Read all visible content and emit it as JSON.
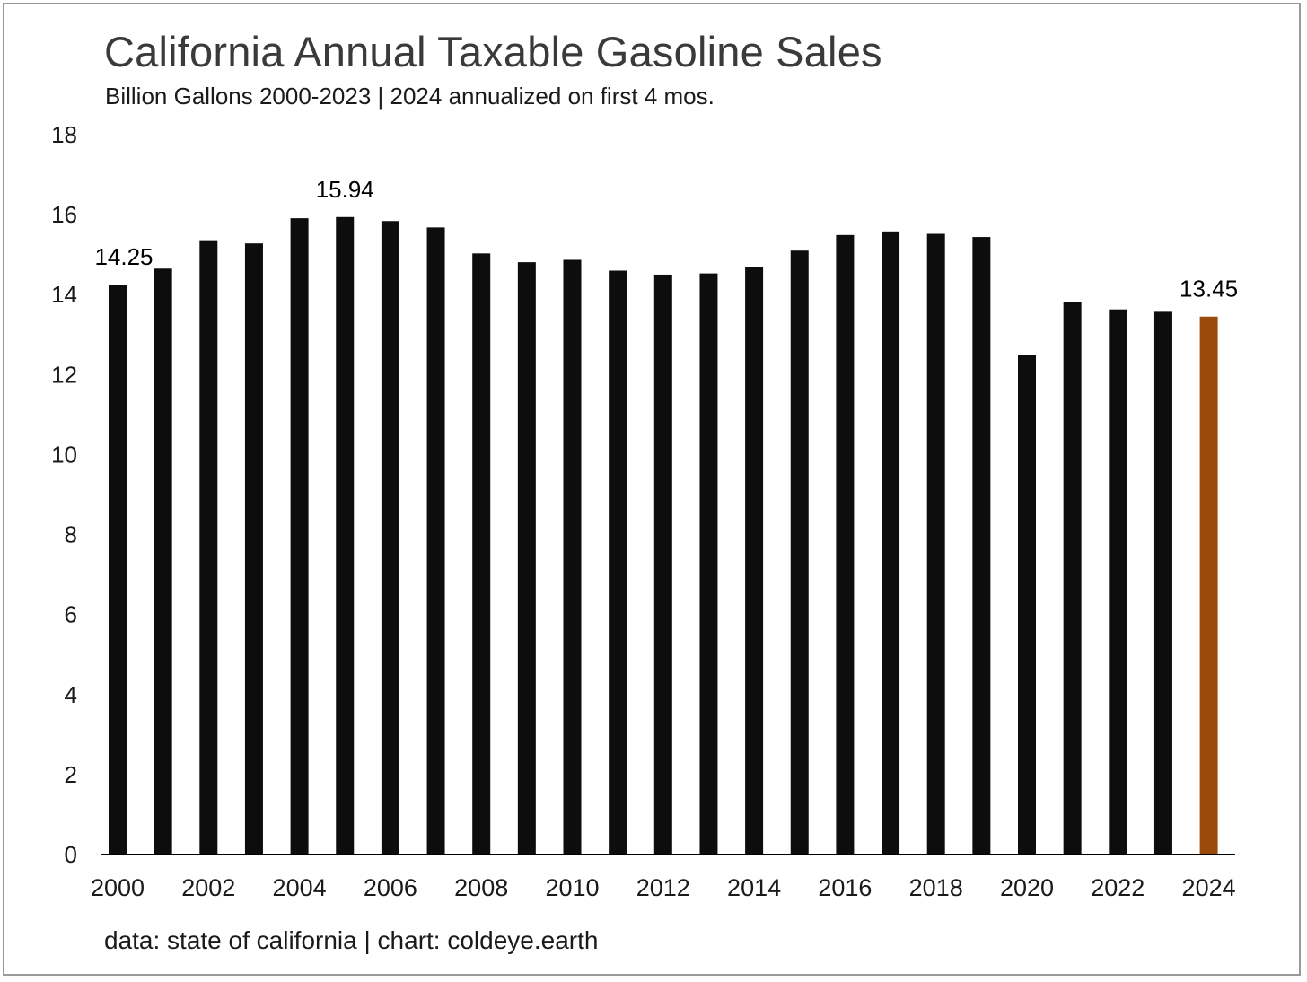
{
  "title": "California Annual Taxable Gasoline Sales",
  "subtitle": "Billion Gallons 2000-2023 | 2024 annualized on first 4 mos.",
  "source": "data: state of california | chart: coldeye.earth",
  "colors": {
    "bar": "#0d0d0d",
    "highlight": "#9a4a0a",
    "axis": "#000000",
    "frame": "#9a9a9a"
  },
  "chart_data": {
    "type": "bar",
    "categories": [
      "2000",
      "2001",
      "2002",
      "2003",
      "2004",
      "2005",
      "2006",
      "2007",
      "2008",
      "2009",
      "2010",
      "2011",
      "2012",
      "2013",
      "2014",
      "2015",
      "2016",
      "2017",
      "2018",
      "2019",
      "2020",
      "2021",
      "2022",
      "2023",
      "2024"
    ],
    "values": [
      14.25,
      14.65,
      15.36,
      15.28,
      15.91,
      15.94,
      15.84,
      15.68,
      15.03,
      14.81,
      14.87,
      14.6,
      14.5,
      14.53,
      14.7,
      15.1,
      15.49,
      15.58,
      15.52,
      15.44,
      12.5,
      13.82,
      13.63,
      13.57,
      13.45
    ],
    "highlight_index": 24,
    "data_labels": [
      {
        "index": 0,
        "text": "14.25"
      },
      {
        "index": 5,
        "text": "15.94"
      },
      {
        "index": 24,
        "text": "13.45"
      }
    ],
    "x_tick_labels": [
      "2000",
      "2002",
      "2004",
      "2006",
      "2008",
      "2010",
      "2012",
      "2014",
      "2016",
      "2018",
      "2020",
      "2022",
      "2024"
    ],
    "y_ticks": [
      "0",
      "2",
      "4",
      "6",
      "8",
      "10",
      "12",
      "14",
      "16",
      "18"
    ],
    "ylim": [
      0,
      18
    ],
    "grid": false
  }
}
